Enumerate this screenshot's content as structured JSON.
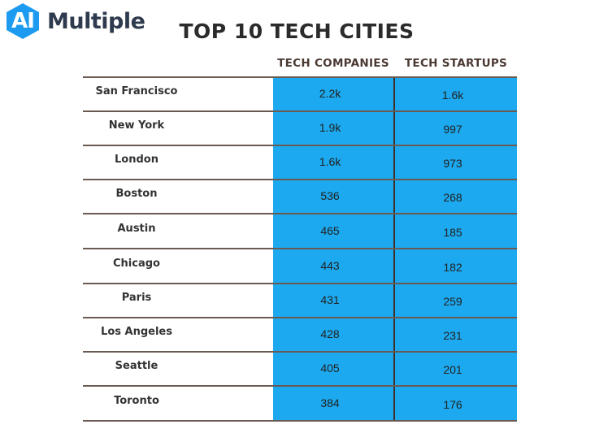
{
  "logo": {
    "badge_text": "AI",
    "brand_text": "Multiple",
    "badge_color": "#1d9bf0"
  },
  "chart_data": {
    "type": "table",
    "title": "TOP 10 TECH CITIES",
    "columns": [
      "TECH COMPANIES",
      "TECH STARTUPS"
    ],
    "rows": [
      {
        "city": "San Francisco",
        "tech_companies": "2.2k",
        "tech_startups": "1.6k"
      },
      {
        "city": "New York",
        "tech_companies": "1.9k",
        "tech_startups": "997"
      },
      {
        "city": "London",
        "tech_companies": "1.6k",
        "tech_startups": "973"
      },
      {
        "city": "Boston",
        "tech_companies": "536",
        "tech_startups": "268"
      },
      {
        "city": "Austin",
        "tech_companies": "465",
        "tech_startups": "185"
      },
      {
        "city": "Chicago",
        "tech_companies": "443",
        "tech_startups": "182"
      },
      {
        "city": "Paris",
        "tech_companies": "431",
        "tech_startups": "259"
      },
      {
        "city": "Los Angeles",
        "tech_companies": "428",
        "tech_startups": "231"
      },
      {
        "city": "Seattle",
        "tech_companies": "405",
        "tech_startups": "201"
      },
      {
        "city": "Toronto",
        "tech_companies": "384",
        "tech_startups": "176"
      }
    ],
    "highlight_color": "#1ca9ef"
  }
}
